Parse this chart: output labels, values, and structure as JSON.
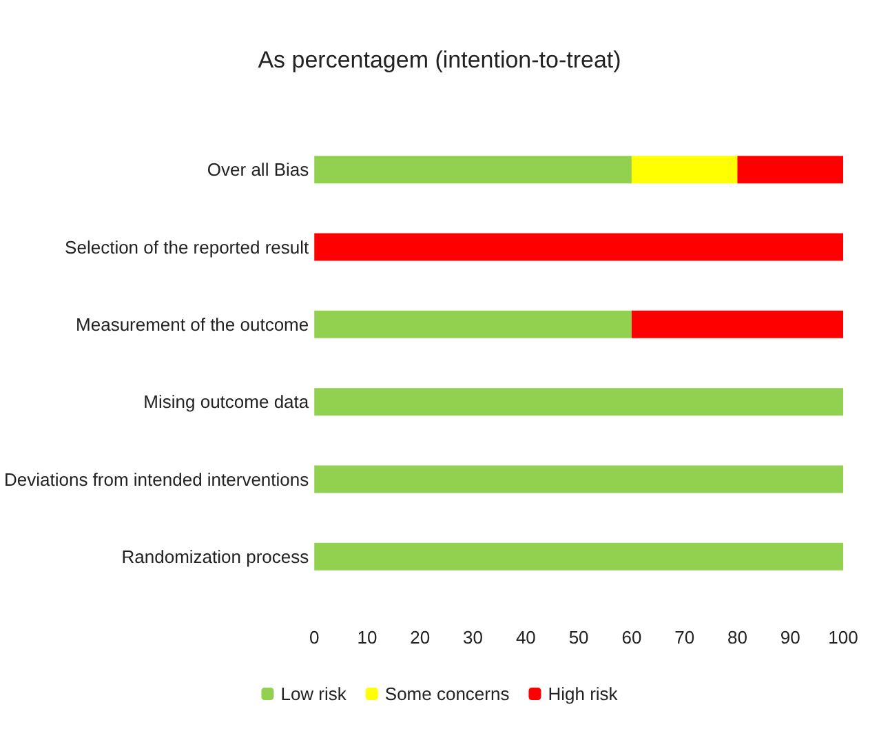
{
  "chart_data": {
    "type": "bar",
    "title": "As percentagem (intention-to-treat)",
    "orientation": "horizontal",
    "stacked": true,
    "categories": [
      "Over all Bias",
      "Selection of the reported result",
      "Measurement of the outcome",
      "Mising outcome data",
      "Deviations from intended interventions",
      "Randomization process"
    ],
    "series": [
      {
        "name": "Low risk",
        "color": "#92d050",
        "values": [
          60,
          0,
          60,
          100,
          100,
          100
        ]
      },
      {
        "name": "Some concerns",
        "color": "#ffff00",
        "values": [
          20,
          0,
          0,
          0,
          0,
          0
        ]
      },
      {
        "name": "High risk",
        "color": "#ff0000",
        "values": [
          20,
          100,
          40,
          0,
          0,
          0
        ]
      }
    ],
    "xlim": [
      0,
      100
    ],
    "xticks": [
      0,
      10,
      20,
      30,
      40,
      50,
      60,
      70,
      80,
      90,
      100
    ],
    "grid": false,
    "legend": "bottom"
  }
}
